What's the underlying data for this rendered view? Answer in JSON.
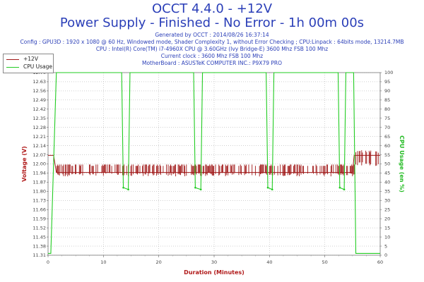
{
  "title_line1": "OCCT 4.4.0 - +12V",
  "title_line2": "Power Supply - Finished - No Error - 1h 00m 00s",
  "info_lines": [
    "Generated by OCCT : 2014/08/26 16:37:14",
    "Config : GPU3D : 1920 x 1080 @ 60 Hz, Windowed mode, Shader Complexity 1, without Error Checking ; CPU:Linpack : 64bits mode, 13214.7MB",
    "CPU : Intel(R) Core(TM) i7-4960X CPU @ 3.60GHz (Ivy Bridge-E) 3600 Mhz FSB 100 Mhz",
    "Current clock : 3600 Mhz FSB 100 Mhz",
    "MotherBoard : ASUSTeK COMPUTER INC.: P9X79 PRO"
  ],
  "legend": [
    {
      "label": "+12V",
      "color": "#a01818"
    },
    {
      "label": "CPU Usage",
      "color": "#22cc22"
    }
  ],
  "chart_data": {
    "type": "line",
    "xlabel": "Duration (Minutes)",
    "ylabel_left": "Voltage (V)",
    "ylabel_right": "CPU Usage (en %)",
    "xlim": [
      0,
      60
    ],
    "x_ticks": [
      0,
      10,
      20,
      30,
      40,
      50,
      60
    ],
    "ylim_left": [
      11.31,
      12.7
    ],
    "y_ticks_left": [
      "11.31",
      "11.38",
      "11.45",
      "11.52",
      "11.59",
      "11.66",
      "11.73",
      "11.80",
      "11.87",
      "11.94",
      "12.00",
      "12.07",
      "12.14",
      "12.21",
      "12.28",
      "12.35",
      "12.42",
      "12.49",
      "12.56",
      "12.63",
      "12.70"
    ],
    "ylim_right": [
      0,
      100
    ],
    "y_ticks_right": [
      "0",
      "5",
      "10",
      "15",
      "20",
      "25",
      "30",
      "35",
      "40",
      "45",
      "50",
      "55",
      "60",
      "65",
      "70",
      "75",
      "80",
      "85",
      "90",
      "95",
      "100"
    ],
    "grid": true,
    "series": [
      {
        "name": "+12V",
        "axis": "left",
        "color": "#a01818",
        "points": [
          [
            0,
            12.07
          ],
          [
            1.0,
            12.07
          ],
          [
            1.5,
            11.94
          ],
          [
            55,
            11.94
          ],
          [
            55.3,
            12.07
          ],
          [
            60,
            12.07
          ]
        ],
        "noise_range": [
          11.87,
          12.0
        ]
      },
      {
        "name": "CPU Usage",
        "axis": "right",
        "color": "#22cc22",
        "points": [
          [
            0,
            1
          ],
          [
            0.5,
            1
          ],
          [
            1.5,
            100
          ],
          [
            13.3,
            100
          ],
          [
            13.6,
            37
          ],
          [
            14.5,
            36
          ],
          [
            14.8,
            100
          ],
          [
            26.3,
            100
          ],
          [
            26.6,
            37
          ],
          [
            27.6,
            36
          ],
          [
            27.9,
            100
          ],
          [
            39.4,
            100
          ],
          [
            39.7,
            37
          ],
          [
            40.5,
            36
          ],
          [
            40.8,
            100
          ],
          [
            52.4,
            100
          ],
          [
            52.7,
            37
          ],
          [
            53.5,
            36
          ],
          [
            53.8,
            100
          ],
          [
            55.2,
            100
          ],
          [
            55.6,
            1
          ],
          [
            60,
            1
          ]
        ]
      }
    ]
  }
}
